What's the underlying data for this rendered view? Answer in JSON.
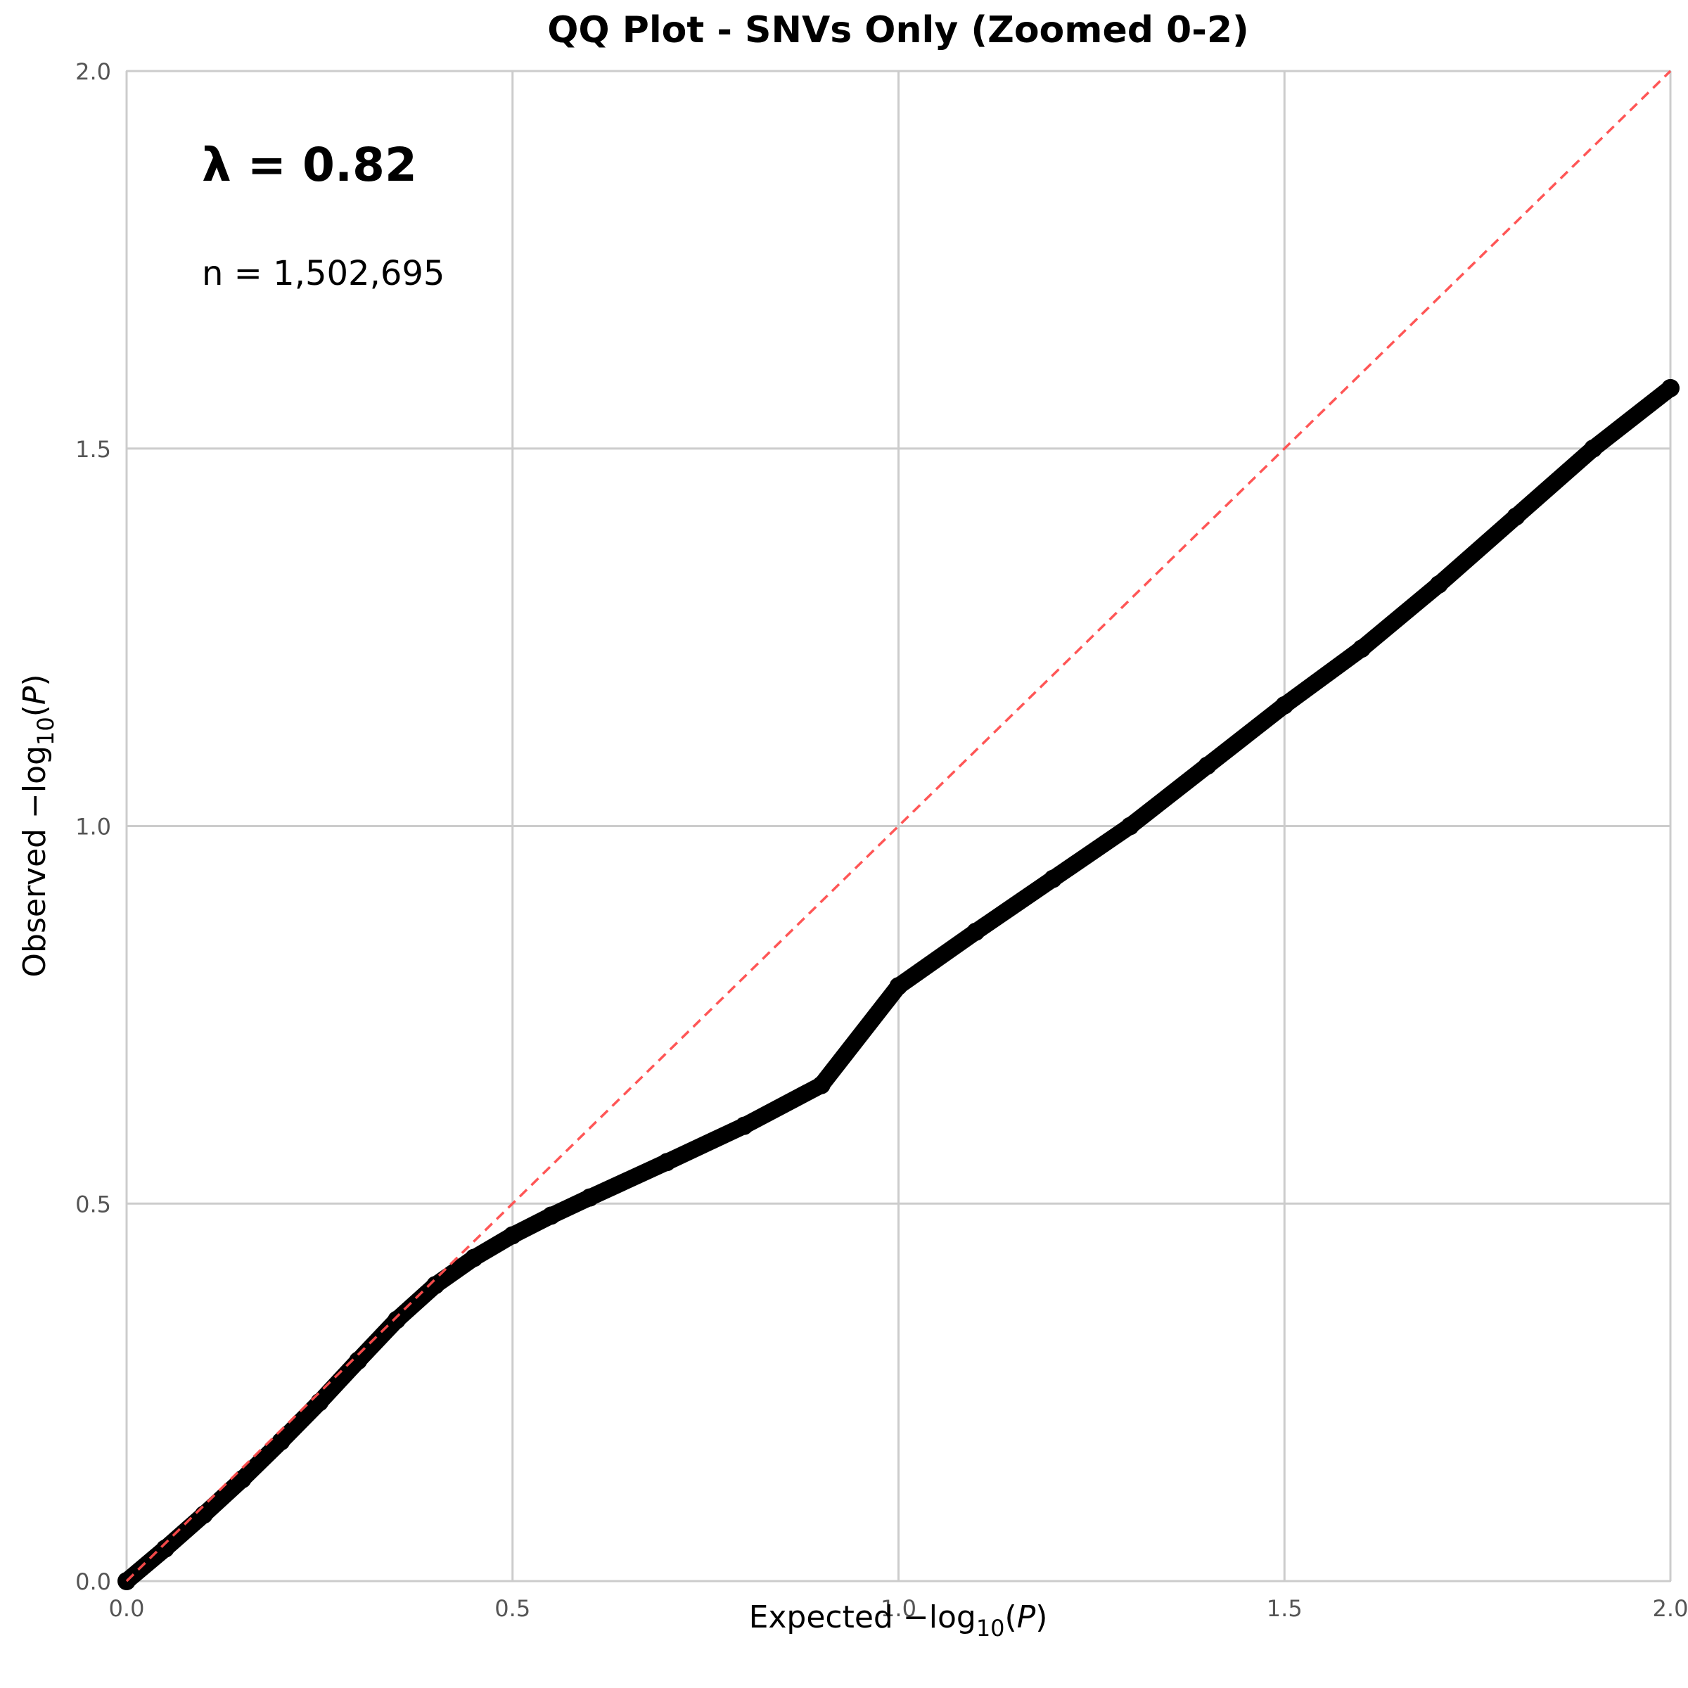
{
  "chart_data": {
    "type": "scatter",
    "title": "QQ Plot - SNVs Only (Zoomed 0-2)",
    "xlabel": {
      "prefix": "Expected ",
      "sign": "−",
      "log": "log",
      "sub": "10",
      "open": "(",
      "var": "P",
      "close": ")"
    },
    "ylabel": {
      "prefix": "Observed ",
      "sign": "−",
      "log": "log",
      "sub": "10",
      "open": "(",
      "var": "P",
      "close": ")"
    },
    "xlim": [
      0,
      2
    ],
    "ylim": [
      0,
      2
    ],
    "xticks": [
      0,
      0.5,
      1,
      1.5,
      2
    ],
    "yticks": [
      0,
      0.5,
      1,
      1.5,
      2
    ],
    "xtick_labels": [
      "0.0",
      "0.5",
      "1.0",
      "1.5",
      "2.0"
    ],
    "ytick_labels": [
      "0.0",
      "0.5",
      "1.0",
      "1.5",
      "2.0"
    ],
    "grid": true,
    "annotations": {
      "lambda": "λ = 0.82",
      "n": "n = 1,502,695"
    },
    "reference_line": {
      "x": [
        0,
        2
      ],
      "y": [
        0,
        2
      ],
      "color": "#ff4d4d",
      "style": "dashed"
    },
    "series": [
      {
        "color": "#000000",
        "x": [
          0.0,
          0.05,
          0.1,
          0.15,
          0.2,
          0.25,
          0.3,
          0.35,
          0.4,
          0.45,
          0.5,
          0.55,
          0.6,
          0.7,
          0.8,
          0.9,
          1.0,
          1.1,
          1.2,
          1.3,
          1.4,
          1.5,
          1.6,
          1.7,
          1.8,
          1.9,
          2.0
        ],
        "y": [
          0.0,
          0.043,
          0.088,
          0.135,
          0.185,
          0.237,
          0.292,
          0.346,
          0.392,
          0.428,
          0.458,
          0.484,
          0.508,
          0.555,
          0.603,
          0.657,
          0.788,
          0.86,
          0.93,
          1.0,
          1.08,
          1.16,
          1.235,
          1.32,
          1.41,
          1.5,
          1.58
        ]
      }
    ]
  }
}
